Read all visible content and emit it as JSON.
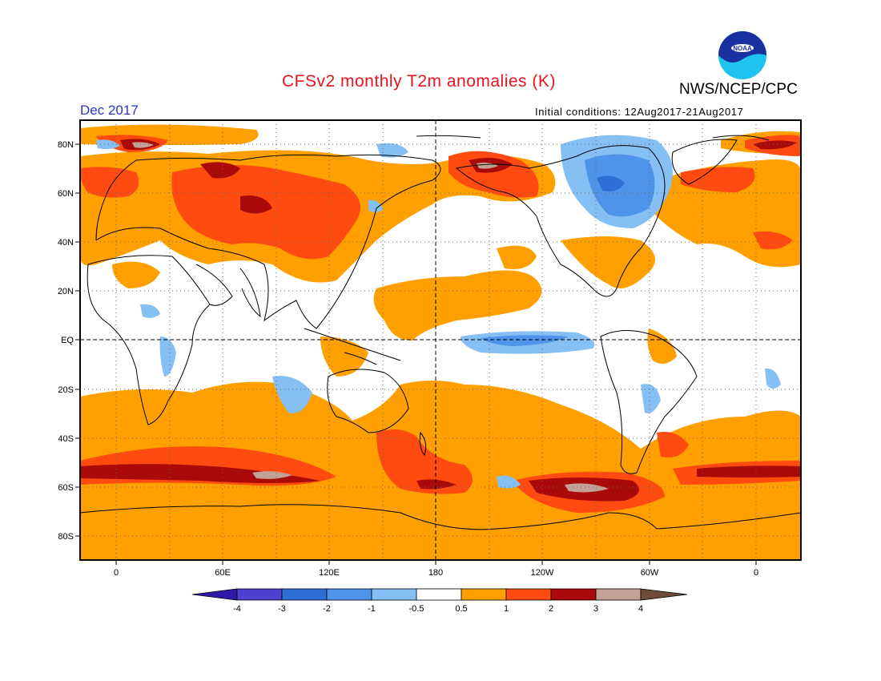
{
  "header": {
    "title": "CFSv2 monthly T2m anomalies (K)",
    "agency": "NWS/NCEP/CPC",
    "valid_month": "Dec 2017",
    "initial_conditions": "Initial conditions: 12Aug2017-21Aug2017",
    "logo_text": "NOAA"
  },
  "map": {
    "lat_labels": [
      "80N",
      "60N",
      "40N",
      "20N",
      "EQ",
      "20S",
      "40S",
      "60S",
      "80S"
    ],
    "lon_labels": [
      "0",
      "60E",
      "120E",
      "180",
      "120W",
      "60W",
      "0"
    ]
  },
  "colorbar": {
    "labels": [
      "-4",
      "-3",
      "-2",
      "-1",
      "-0.5",
      "0.5",
      "1",
      "2",
      "3",
      "4"
    ],
    "colors": {
      "lt_m4": "#2e19a8",
      "m4_m3": "#5040d2",
      "m3_m2": "#2e6fd6",
      "m2_m1": "#4d94ea",
      "m1_m05": "#86bff3",
      "m05_05": "#ffffff",
      "05_1": "#ffa000",
      "1_2": "#ff4a10",
      "2_3": "#ab0a0a",
      "3_4": "#c4a196",
      "gt_4": "#6e4b38"
    }
  }
}
